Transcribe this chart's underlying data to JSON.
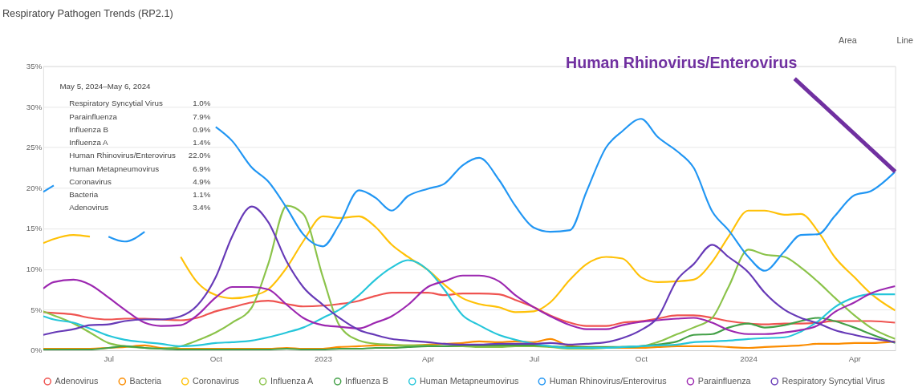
{
  "chart_data": {
    "type": "line",
    "title": "Respiratory Pathogen Trends (RP2.1)",
    "x": [
      "2022-05-06",
      "2022-05-15",
      "2022-06-01",
      "2022-06-15",
      "2022-07-01",
      "2022-07-15",
      "2022-08-01",
      "2022-08-15",
      "2022-09-01",
      "2022-09-15",
      "2022-10-01",
      "2022-10-15",
      "2022-11-01",
      "2022-11-15",
      "2022-12-01",
      "2022-12-15",
      "2023-01-01",
      "2023-01-15",
      "2023-02-01",
      "2023-02-15",
      "2023-03-01",
      "2023-03-15",
      "2023-04-01",
      "2023-04-15",
      "2023-05-01",
      "2023-05-15",
      "2023-06-01",
      "2023-06-15",
      "2023-07-01",
      "2023-07-15",
      "2023-08-01",
      "2023-08-15",
      "2023-09-01",
      "2023-09-15",
      "2023-10-01",
      "2023-10-15",
      "2023-11-01",
      "2023-11-15",
      "2023-12-01",
      "2023-12-15",
      "2024-01-01",
      "2024-01-15",
      "2024-02-01",
      "2024-02-15",
      "2024-03-01",
      "2024-03-15",
      "2024-04-01",
      "2024-04-15",
      "2024-05-06"
    ],
    "series": [
      {
        "name": "Adenovirus",
        "color": "#ef5350",
        "values": [
          4.7,
          4.6,
          4.4,
          4.0,
          3.8,
          3.9,
          3.9,
          3.8,
          3.7,
          4.0,
          4.8,
          5.3,
          5.9,
          6.1,
          5.7,
          5.4,
          5.5,
          5.7,
          6.1,
          6.7,
          7.1,
          7.1,
          7.1,
          6.8,
          7.0,
          7.0,
          6.9,
          6.2,
          5.3,
          4.3,
          3.4,
          3.0,
          3.0,
          3.4,
          3.6,
          3.9,
          4.3,
          4.3,
          4.0,
          3.6,
          3.3,
          3.2,
          3.3,
          3.3,
          3.4,
          3.6,
          3.6,
          3.6,
          3.4
        ]
      },
      {
        "name": "Bacteria",
        "color": "#fb8c00",
        "values": [
          0.2,
          0.2,
          0.2,
          0.2,
          0.3,
          0.4,
          0.6,
          0.3,
          0.2,
          0.2,
          0.2,
          0.2,
          0.2,
          0.2,
          0.3,
          0.2,
          0.2,
          0.4,
          0.5,
          0.6,
          0.6,
          0.6,
          0.7,
          0.8,
          0.9,
          1.1,
          1.0,
          1.1,
          1.0,
          1.4,
          0.5,
          0.4,
          0.3,
          0.3,
          0.3,
          0.4,
          0.5,
          0.5,
          0.5,
          0.4,
          0.3,
          0.4,
          0.5,
          0.6,
          0.8,
          0.8,
          0.9,
          0.9,
          1.1
        ]
      },
      {
        "name": "Coronavirus",
        "color": "#ffc107",
        "values": [
          13.2,
          13.7,
          14.2,
          14.0,
          null,
          null,
          null,
          null,
          11.5,
          8.4,
          6.8,
          6.4,
          6.7,
          7.5,
          10.2,
          13.4,
          16.5,
          16.3,
          16.5,
          15.2,
          13.0,
          11.5,
          9.9,
          8.1,
          6.4,
          5.7,
          5.3,
          4.7,
          4.8,
          5.9,
          8.7,
          10.6,
          11.5,
          11.3,
          9.0,
          8.4,
          8.5,
          8.7,
          10.9,
          14.0,
          17.2,
          17.2,
          16.7,
          16.8,
          14.6,
          11.5,
          9.0,
          7.0,
          4.9
        ]
      },
      {
        "name": "Influenza A",
        "color": "#8bc34a",
        "values": [
          4.8,
          4.3,
          3.3,
          2.2,
          0.9,
          0.5,
          0.3,
          0.2,
          0.5,
          1.2,
          2.2,
          3.4,
          5.3,
          10.6,
          17.8,
          16.8,
          9.0,
          3.1,
          1.2,
          0.8,
          0.7,
          0.6,
          0.6,
          0.5,
          0.5,
          0.4,
          0.4,
          0.5,
          0.5,
          0.4,
          0.2,
          0.2,
          0.3,
          0.4,
          0.5,
          1.0,
          2.0,
          2.8,
          4.0,
          7.8,
          12.4,
          11.8,
          11.5,
          10.2,
          8.4,
          6.5,
          4.3,
          2.8,
          1.4
        ]
      },
      {
        "name": "Influenza B",
        "color": "#43a047",
        "values": [
          0.1,
          0.1,
          0.1,
          0.1,
          0.3,
          0.5,
          0.3,
          0.2,
          0.1,
          0.1,
          0.1,
          0.1,
          0.1,
          0.1,
          0.2,
          0.1,
          0.1,
          0.2,
          0.2,
          0.3,
          0.3,
          0.4,
          0.5,
          0.5,
          0.6,
          0.6,
          0.6,
          0.6,
          0.6,
          0.5,
          0.4,
          0.4,
          0.4,
          0.4,
          0.5,
          0.7,
          1.1,
          1.9,
          2.0,
          2.8,
          3.3,
          2.8,
          3.1,
          3.6,
          4.0,
          3.6,
          2.8,
          2.0,
          0.9
        ]
      },
      {
        "name": "Human Metapneumovirus",
        "color": "#26c6da",
        "values": [
          4.2,
          3.8,
          3.4,
          2.7,
          1.8,
          1.3,
          1.0,
          0.8,
          0.5,
          0.6,
          0.9,
          1.0,
          1.2,
          1.6,
          2.2,
          2.8,
          4.0,
          5.0,
          6.8,
          8.7,
          10.2,
          11.1,
          9.9,
          7.5,
          4.3,
          3.1,
          1.9,
          1.3,
          0.8,
          0.5,
          0.3,
          0.3,
          0.3,
          0.4,
          0.5,
          0.6,
          0.7,
          1.0,
          1.1,
          1.2,
          1.4,
          1.5,
          1.6,
          2.3,
          3.6,
          5.3,
          6.5,
          6.9,
          6.9
        ]
      },
      {
        "name": "Human Rhinovirus/Enterovirus",
        "color": "#2196f3",
        "values": [
          19.5,
          20.3,
          null,
          null,
          14.0,
          13.4,
          14.6,
          null,
          null,
          null,
          27.5,
          25.8,
          22.5,
          20.8,
          17.5,
          14.3,
          12.8,
          15.5,
          19.7,
          18.8,
          17.2,
          19.0,
          19.9,
          20.5,
          22.8,
          23.7,
          21.0,
          17.8,
          15.1,
          14.6,
          14.8,
          19.5,
          25.0,
          27.0,
          28.5,
          26.3,
          24.5,
          22.5,
          17.1,
          14.8,
          11.5,
          9.8,
          12.2,
          14.2,
          14.3,
          16.5,
          19.1,
          19.6,
          22.0
        ]
      },
      {
        "name": "Parainfluenza",
        "color": "#9c27b0",
        "values": [
          7.6,
          8.4,
          8.7,
          8.1,
          6.5,
          5.0,
          3.4,
          3.0,
          3.1,
          4.3,
          6.5,
          7.8,
          7.8,
          7.5,
          5.6,
          4.0,
          3.1,
          2.9,
          2.7,
          3.4,
          4.2,
          5.6,
          7.8,
          8.5,
          9.2,
          9.2,
          8.5,
          6.8,
          5.3,
          4.2,
          3.1,
          2.6,
          2.6,
          3.1,
          3.5,
          3.7,
          3.9,
          4.0,
          3.4,
          2.5,
          2.0,
          2.0,
          2.2,
          2.5,
          3.1,
          4.7,
          5.9,
          7.0,
          7.9
        ]
      },
      {
        "name": "Respiratory Syncytial Virus",
        "color": "#673ab7",
        "values": [
          1.9,
          2.2,
          2.6,
          3.1,
          3.2,
          3.6,
          3.8,
          3.8,
          4.2,
          5.5,
          9.0,
          14.0,
          17.7,
          15.8,
          10.9,
          7.8,
          5.6,
          4.0,
          2.5,
          1.9,
          1.4,
          1.2,
          1.0,
          0.8,
          0.7,
          0.7,
          0.8,
          0.8,
          0.8,
          0.9,
          0.7,
          0.8,
          1.0,
          1.5,
          2.5,
          4.0,
          8.7,
          10.6,
          13.0,
          11.5,
          9.6,
          7.1,
          5.0,
          4.0,
          3.3,
          2.5,
          1.9,
          1.5,
          1.0
        ]
      }
    ],
    "xlim": [
      "2022-05-06",
      "2024-05-06"
    ],
    "xticks": [
      {
        "value": "2022-07-01",
        "label": "Jul"
      },
      {
        "value": "2022-10-01",
        "label": "Oct"
      },
      {
        "value": "2023-01-01",
        "label": "2023"
      },
      {
        "value": "2023-04-01",
        "label": "Apr"
      },
      {
        "value": "2023-07-01",
        "label": "Jul"
      },
      {
        "value": "2023-10-01",
        "label": "Oct"
      },
      {
        "value": "2024-01-01",
        "label": "2024"
      },
      {
        "value": "2024-04-01",
        "label": "Apr"
      }
    ],
    "ylim": [
      0,
      35
    ],
    "yticks": [
      {
        "value": 0,
        "label": "0%"
      },
      {
        "value": 5,
        "label": "5%"
      },
      {
        "value": 10,
        "label": "10%"
      },
      {
        "value": 15,
        "label": "15%"
      },
      {
        "value": 20,
        "label": "20%"
      },
      {
        "value": 25,
        "label": "25%"
      },
      {
        "value": 30,
        "label": "30%"
      },
      {
        "value": 35,
        "label": "35%"
      }
    ],
    "grid": "y",
    "legend": "bottom",
    "annotations": [
      "Area",
      "Line",
      "May 5, 2024–May 6, 2024",
      "Respiratory Syncytial Virus",
      "1.0%",
      "Parainfluenza",
      "7.9%",
      "Influenza B",
      "0.9%",
      "Influenza A",
      "1.4%",
      "Human Rhinovirus/Enterovirus",
      "22.0%",
      "Human Metapneumovirus",
      "6.9%",
      "Coronavirus",
      "4.9%",
      "Bacteria",
      "1.1%",
      "Adenovirus",
      "3.4%",
      {
        "text": "Human Rhinovirus/Enterovirus",
        "x": "2024-05-06",
        "y": 22.0
      }
    ]
  }
}
